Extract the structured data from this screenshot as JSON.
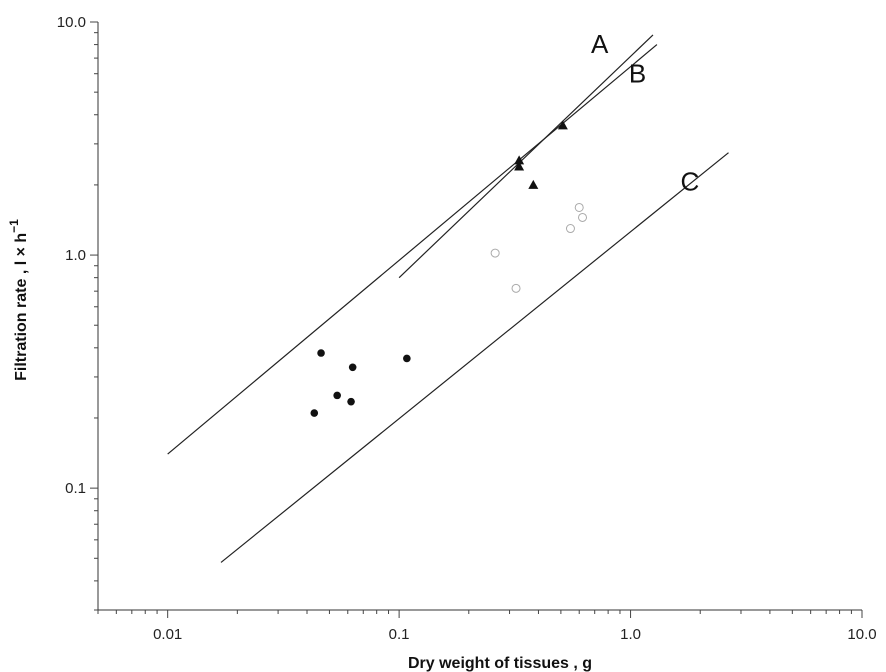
{
  "chart_data": {
    "type": "scatter",
    "xscale": "log",
    "yscale": "log",
    "xlabel": "Dry weight of tissues , g",
    "ylabel": "Filtration rate , l × h",
    "ylabel_superscript": "−1",
    "xlim": [
      0.005,
      10
    ],
    "ylim": [
      0.03,
      10
    ],
    "x_tick_labels": [
      {
        "value": 0.01,
        "label": "0.01"
      },
      {
        "value": 0.1,
        "label": "0.1"
      },
      {
        "value": 1,
        "label": "1.0"
      },
      {
        "value": 10,
        "label": "10.0"
      }
    ],
    "y_tick_labels": [
      {
        "value": 0.1,
        "label": "0.1"
      },
      {
        "value": 1,
        "label": "1.0"
      },
      {
        "value": 10,
        "label": "10.0"
      }
    ],
    "grid": false,
    "lines": [
      {
        "name": "A",
        "x": [
          0.1,
          1.25
        ],
        "y": [
          0.8,
          8.8
        ]
      },
      {
        "name": "B",
        "x": [
          0.01,
          1.3
        ],
        "y": [
          0.14,
          8.0
        ]
      },
      {
        "name": "C",
        "x": [
          0.017,
          2.65
        ],
        "y": [
          0.048,
          2.75
        ]
      }
    ],
    "series": [
      {
        "marker": "circle",
        "x": [
          0.043,
          0.046,
          0.054,
          0.062,
          0.063,
          0.108
        ],
        "y": [
          0.21,
          0.38,
          0.25,
          0.235,
          0.33,
          0.36
        ]
      },
      {
        "marker": "triangle",
        "x": [
          0.33,
          0.33,
          0.38,
          0.51
        ],
        "y": [
          2.4,
          2.55,
          2.0,
          3.6
        ]
      },
      {
        "marker": "open-circle",
        "x": [
          0.26,
          0.32,
          0.55,
          0.6,
          0.62
        ],
        "y": [
          1.02,
          0.72,
          1.3,
          1.6,
          1.45
        ]
      }
    ]
  }
}
